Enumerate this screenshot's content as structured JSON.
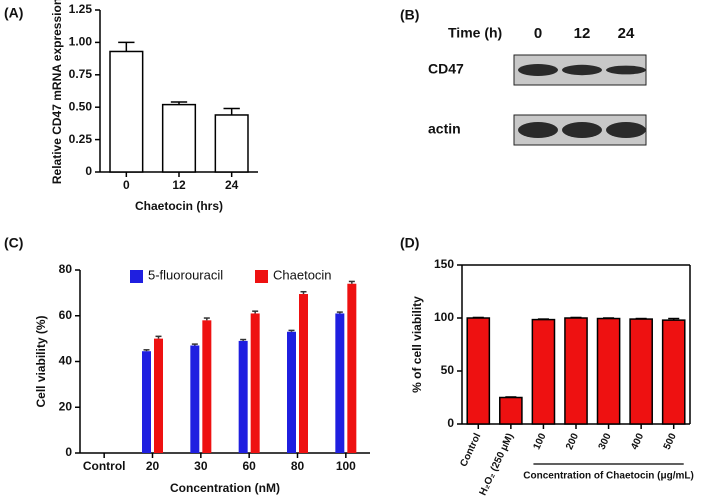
{
  "chart_data": [
    {
      "type": "bar",
      "label": "(A)",
      "y_label": "Relative CD47 mRNA expression",
      "x_label": "Chaetocin (hrs)",
      "categories": [
        "0",
        "12",
        "24"
      ],
      "values": [
        0.93,
        0.52,
        0.44
      ],
      "errors": [
        0.07,
        0.02,
        0.05
      ],
      "color": "#ffffff",
      "ylim": [
        0,
        1.25
      ],
      "yticks": [
        0,
        0.25,
        {
          "value": 0.5,
          "label": "0.50"
        },
        0.75,
        {
          "value": 1,
          "label": "1.00"
        },
        1.25
      ]
    },
    {
      "type": "blot",
      "label": "(B)",
      "x_label": "Time (h)",
      "categories": [
        "0",
        "12",
        "24"
      ],
      "rows": [
        "CD47",
        "actin"
      ]
    },
    {
      "type": "grouped_bar",
      "label": "(C)",
      "y_label": "Cell viability (%)",
      "x_label": "Concentration (nM)",
      "categories": [
        "Control",
        "20",
        "30",
        "60",
        "80",
        "100"
      ],
      "series": [
        {
          "name": "5-fluorouracil",
          "color": "#1f1fe0",
          "values": [
            null,
            44.5,
            47,
            49,
            53,
            61
          ],
          "errors": [
            null,
            0.6,
            0.6,
            0.6,
            0.6,
            0.6
          ]
        },
        {
          "name": "Chaetocin",
          "color": "#ee1111",
          "values": [
            null,
            50,
            58,
            61,
            69.5,
            74
          ],
          "errors": [
            null,
            1,
            1,
            1,
            1,
            1
          ]
        }
      ],
      "ylim": [
        0,
        80
      ],
      "yticks": [
        0,
        20,
        40,
        60,
        80
      ]
    },
    {
      "type": "bar",
      "label": "(D)",
      "y_label": "% of cell viability",
      "x_label": "Concentration of Chaetocin (μg/mL)",
      "categories": [
        "Control",
        "H₂O₂ (250 μM)",
        "100",
        "200",
        "300",
        "400",
        "500"
      ],
      "values": [
        100,
        25,
        98.5,
        100,
        99.5,
        99,
        98
      ],
      "errors": [
        0.5,
        0.5,
        0.5,
        0.5,
        0.5,
        0.5,
        1.5
      ],
      "color": "#ee1111",
      "ylim": [
        0,
        150
      ],
      "yticks": [
        0,
        50,
        100,
        150
      ]
    }
  ]
}
